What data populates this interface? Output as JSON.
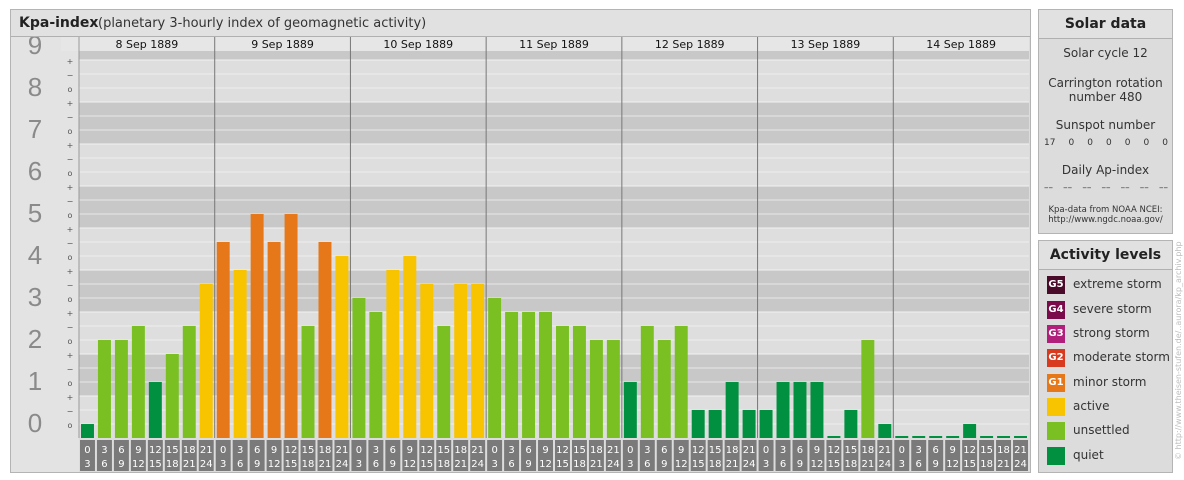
{
  "main": {
    "title": "Kpa-index",
    "subtitle": "(planetary 3-hourly index of geomagnetic activity)"
  },
  "chart_data": {
    "type": "bar",
    "title": "Kpa-index",
    "subtitle": "(planetary 3-hourly index of geomagnetic activity)",
    "days": [
      "8 Sep 1889",
      "9 Sep 1889",
      "10 Sep 1889",
      "11 Sep 1889",
      "12 Sep 1889",
      "13 Sep 1889",
      "14 Sep 1889"
    ],
    "y_ticks": [
      "0",
      "1",
      "2",
      "3",
      "4",
      "5",
      "6",
      "7",
      "8",
      "9"
    ],
    "sub_tick_labels": [
      "+",
      "o",
      "−"
    ],
    "ylim": [
      0,
      9.33
    ],
    "interval_starts": [
      "0",
      "3",
      "6",
      "9",
      "12",
      "15",
      "18",
      "21"
    ],
    "interval_ends": [
      "3",
      "6",
      "9",
      "12",
      "15",
      "18",
      "21",
      "24"
    ],
    "values": [
      0.333,
      2.333,
      2.333,
      2.667,
      1.333,
      2.0,
      2.667,
      3.667,
      4.667,
      4.0,
      5.333,
      4.667,
      5.333,
      2.667,
      4.667,
      4.333,
      3.333,
      3.0,
      4.0,
      4.333,
      3.667,
      2.667,
      3.667,
      3.667,
      3.333,
      3.0,
      3.0,
      3.0,
      2.667,
      2.667,
      2.333,
      2.333,
      1.333,
      2.667,
      2.333,
      2.667,
      0.667,
      0.667,
      1.333,
      0.667,
      0.667,
      1.333,
      1.333,
      1.333,
      0.0,
      0.667,
      2.333,
      0.333,
      0.0,
      0.0,
      0.0,
      0.0,
      0.333,
      0.0,
      0.0,
      0.0
    ],
    "colors": {
      "quiet": "#009040",
      "unsettled": "#7ac023",
      "active": "#f8c400",
      "minor": "#e6781a",
      "plot_bg_dark": "#c8c8c8",
      "plot_bg_light": "#dedede",
      "axis_bg": "#7a7a7a"
    },
    "grid": true,
    "legend_position": "right"
  },
  "solar": {
    "title": "Solar data",
    "cycle": "Solar cycle 12",
    "carrington_line1": "Carrington rotation",
    "carrington_line2": "number 480",
    "sunspot_label": "Sunspot number",
    "sunspot_values": [
      "17",
      "0",
      "0",
      "0",
      "0",
      "0",
      "0"
    ],
    "ap_label": "Daily Ap-index",
    "ap_values": [
      "––",
      "––",
      "––",
      "––",
      "––",
      "––",
      "––"
    ],
    "source_line1": "Kpa-data from NOAA NCEI:",
    "source_line2": "http://www.ngdc.noaa.gov/"
  },
  "activity": {
    "title": "Activity levels",
    "items": [
      {
        "code": "G5",
        "label": "extreme storm",
        "color": "#4a0a2a"
      },
      {
        "code": "G4",
        "label": "severe storm",
        "color": "#7a0a4a"
      },
      {
        "code": "G3",
        "label": "strong storm",
        "color": "#b0207a"
      },
      {
        "code": "G2",
        "label": "moderate storm",
        "color": "#d83a20"
      },
      {
        "code": "G1",
        "label": "minor storm",
        "color": "#e6781a"
      },
      {
        "code": "",
        "label": "active",
        "color": "#f8c400"
      },
      {
        "code": "",
        "label": "unsettled",
        "color": "#7ac023"
      },
      {
        "code": "",
        "label": "quiet",
        "color": "#009040"
      }
    ]
  },
  "credit": "© http://www.theisen-stufen.de/..aurora/kp_archiv.php"
}
